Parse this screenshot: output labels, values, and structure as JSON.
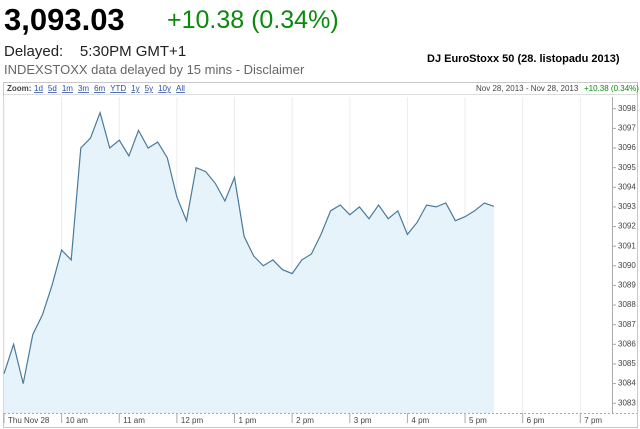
{
  "header": {
    "price": "3,093.03",
    "change": "+10.38 (0.34%)",
    "delayed_label": "Delayed:",
    "delayed_time": "5:30PM GMT+1",
    "note": "INDEXSTOXX data delayed by 15 mins - Disclaimer",
    "index_title": "DJ EuroStoxx 50 (28. listopadu 2013)"
  },
  "chart_data": {
    "type": "area",
    "zoom_label": "Zoom:",
    "zoom_options": [
      "1d",
      "5d",
      "1m",
      "3m",
      "6m",
      "YTD",
      "1y",
      "5y",
      "10y",
      "All"
    ],
    "date_range": "Nov 28, 2013 - Nov 28, 2013",
    "range_change": "+10.38 (0.34%)",
    "color": "#4a7a9c",
    "fill": "#e6f3fb",
    "grid": "x",
    "xlim": [
      9,
      19.55
    ],
    "ylim": [
      3082.5,
      3098.6
    ],
    "xticks": [
      {
        "value": 9,
        "label": "Thu Nov 28"
      },
      {
        "value": 10,
        "label": "10 am"
      },
      {
        "value": 11,
        "label": "11 am"
      },
      {
        "value": 12,
        "label": "12 pm"
      },
      {
        "value": 13,
        "label": "1 pm"
      },
      {
        "value": 14,
        "label": "2 pm"
      },
      {
        "value": 15,
        "label": "3 pm"
      },
      {
        "value": 16,
        "label": "4 pm"
      },
      {
        "value": 17,
        "label": "5 pm"
      },
      {
        "value": 18,
        "label": "6 pm"
      },
      {
        "value": 19,
        "label": "7 pm"
      }
    ],
    "yticks": [
      3083,
      3084,
      3085,
      3086,
      3087,
      3088,
      3089,
      3090,
      3091,
      3092,
      3093,
      3094,
      3095,
      3096,
      3097,
      3098
    ],
    "x": [
      9,
      9.1667,
      9.3333,
      9.5,
      9.6667,
      9.8333,
      10,
      10.1667,
      10.3333,
      10.5,
      10.6667,
      10.8333,
      11,
      11.1667,
      11.3333,
      11.5,
      11.6667,
      11.8333,
      12,
      12.1667,
      12.3333,
      12.5,
      12.6667,
      12.8333,
      13,
      13.1667,
      13.3333,
      13.5,
      13.6667,
      13.8333,
      14,
      14.1667,
      14.3333,
      14.5,
      14.6667,
      14.8333,
      15,
      15.1667,
      15.3333,
      15.5,
      15.6667,
      15.8333,
      16,
      16.1667,
      16.3333,
      16.5,
      16.6667,
      16.8333,
      17,
      17.1667,
      17.3333,
      17.5
    ],
    "values": [
      3084.5,
      3086.0,
      3084.0,
      3086.5,
      3087.5,
      3089.0,
      3090.8,
      3090.3,
      3096.0,
      3096.5,
      3097.8,
      3096.0,
      3096.4,
      3095.6,
      3096.9,
      3096.0,
      3096.3,
      3095.5,
      3093.5,
      3092.3,
      3095.0,
      3094.8,
      3094.2,
      3093.3,
      3094.5,
      3091.5,
      3090.5,
      3090.0,
      3090.3,
      3089.8,
      3089.6,
      3090.3,
      3090.6,
      3091.6,
      3092.8,
      3093.1,
      3092.6,
      3093.0,
      3092.4,
      3093.1,
      3092.4,
      3092.8,
      3091.6,
      3092.2,
      3093.1,
      3093.0,
      3093.2,
      3092.3,
      3092.5,
      3092.8,
      3093.2,
      3093.03
    ]
  }
}
